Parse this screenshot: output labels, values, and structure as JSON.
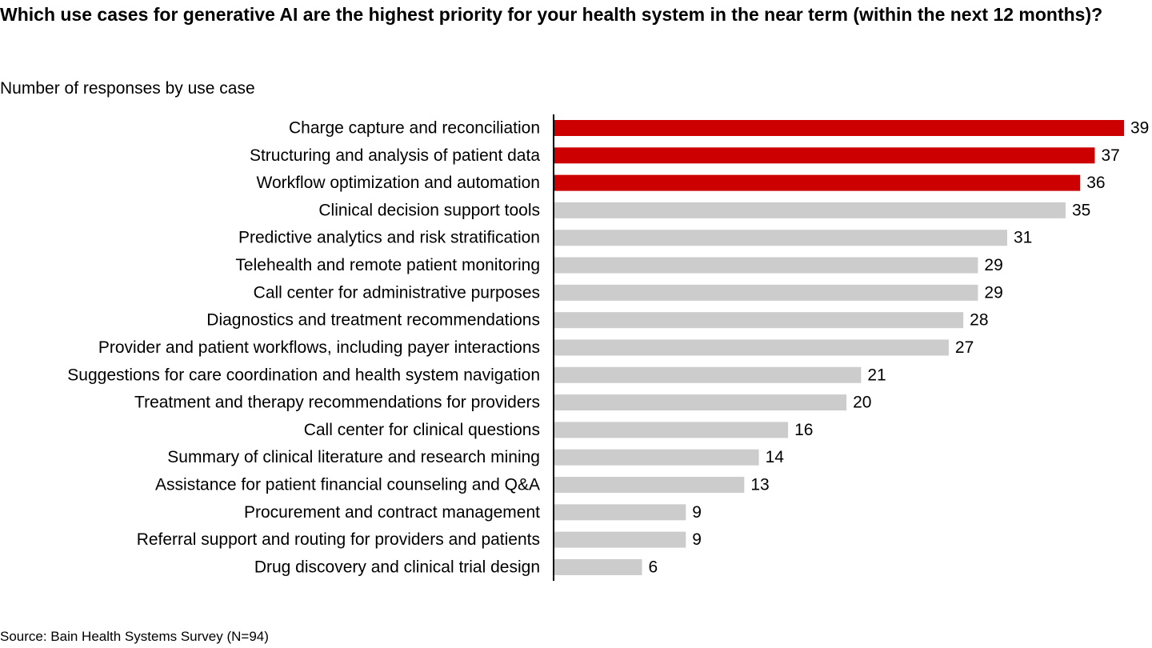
{
  "title": "Which use cases for generative AI are the highest priority for your health system in the near term (within the next 12 months)?",
  "subtitle": "Number of responses by use case",
  "source": "Source: Bain Health Systems Survey (N=94)",
  "colors": {
    "highlight": "#cc0000",
    "default": "#cccccc",
    "axis": "#000000"
  },
  "chart_data": {
    "type": "bar",
    "orientation": "horizontal",
    "title": "Which use cases for generative AI are the highest priority for your health system in the near term (within the next 12 months)?",
    "subtitle": "Number of responses by use case",
    "categories": [
      "Charge capture and reconciliation",
      "Structuring and analysis of patient data",
      "Workflow optimization and automation",
      "Clinical decision support tools",
      "Predictive analytics and risk stratification",
      "Telehealth and remote patient monitoring",
      "Call center for administrative purposes",
      "Diagnostics and treatment recommendations",
      "Provider and patient workflows, including payer interactions",
      "Suggestions for care coordination and health system navigation",
      "Treatment and therapy recommendations for providers",
      "Call center for clinical questions",
      "Summary of clinical literature and research mining",
      "Assistance for patient financial counseling and Q&A",
      "Procurement and contract management",
      "Referral support and routing for providers and patients",
      "Drug discovery and clinical trial design"
    ],
    "values": [
      39,
      37,
      36,
      35,
      31,
      29,
      29,
      28,
      27,
      21,
      20,
      16,
      14,
      13,
      9,
      9,
      6
    ],
    "highlighted": [
      true,
      true,
      true,
      false,
      false,
      false,
      false,
      false,
      false,
      false,
      false,
      false,
      false,
      false,
      false,
      false,
      false
    ],
    "xlim": [
      0,
      39
    ],
    "grid": false,
    "data_labels": true
  }
}
